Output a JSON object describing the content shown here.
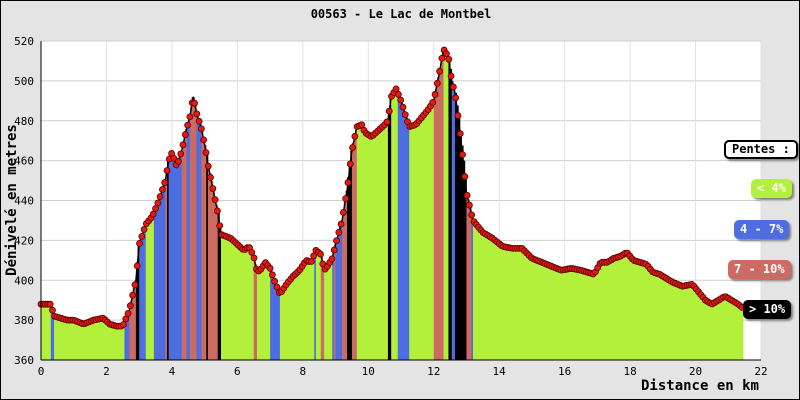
{
  "chart_data": {
    "type": "area",
    "title": "00563 - Le Lac de Montbel",
    "xlabel": "Distance en km",
    "ylabel": "Dénivelé en metres",
    "xlim": [
      0,
      22
    ],
    "ylim": [
      360,
      520
    ],
    "x_ticks": [
      "0",
      "2",
      "4",
      "6",
      "8",
      "10",
      "12",
      "14",
      "16",
      "18",
      "20",
      "22"
    ],
    "y_ticks": [
      "360",
      "380",
      "400",
      "420",
      "440",
      "460",
      "480",
      "500",
      "520"
    ],
    "grid": true,
    "legend_position": "right",
    "legend": {
      "title": "Pentes :",
      "items": [
        {
          "label": "< 4%",
          "color": "#b3f03b"
        },
        {
          "label": "4 - 7%",
          "color": "#4d6ee0"
        },
        {
          "label": "7 - 10%",
          "color": "#cd6a62"
        },
        {
          "label": "> 10%",
          "color": "#000000"
        }
      ]
    },
    "profile": [
      [
        0,
        388
      ],
      [
        0.3,
        388
      ],
      [
        0.4,
        382
      ],
      [
        0.6,
        381
      ],
      [
        0.8,
        380
      ],
      [
        1.0,
        380
      ],
      [
        1.3,
        378
      ],
      [
        1.6,
        380
      ],
      [
        1.9,
        381
      ],
      [
        2.1,
        378
      ],
      [
        2.3,
        377
      ],
      [
        2.5,
        377
      ],
      [
        2.7,
        385
      ],
      [
        2.9,
        400
      ],
      [
        3.0,
        418
      ],
      [
        3.2,
        428
      ],
      [
        3.4,
        432
      ],
      [
        3.6,
        440
      ],
      [
        3.8,
        450
      ],
      [
        3.9,
        460
      ],
      [
        4.0,
        464
      ],
      [
        4.15,
        457
      ],
      [
        4.3,
        465
      ],
      [
        4.45,
        476
      ],
      [
        4.55,
        482
      ],
      [
        4.65,
        492
      ],
      [
        4.75,
        484
      ],
      [
        4.9,
        476
      ],
      [
        5.0,
        468
      ],
      [
        5.1,
        458
      ],
      [
        5.25,
        446
      ],
      [
        5.4,
        434
      ],
      [
        5.5,
        423
      ],
      [
        5.8,
        421
      ],
      [
        6.0,
        418
      ],
      [
        6.2,
        415
      ],
      [
        6.35,
        417
      ],
      [
        6.5,
        412
      ],
      [
        6.6,
        404
      ],
      [
        6.75,
        406
      ],
      [
        6.85,
        409
      ],
      [
        7.0,
        406
      ],
      [
        7.15,
        399
      ],
      [
        7.3,
        393
      ],
      [
        7.5,
        398
      ],
      [
        7.7,
        402
      ],
      [
        7.9,
        405
      ],
      [
        8.1,
        410
      ],
      [
        8.25,
        409
      ],
      [
        8.4,
        415
      ],
      [
        8.55,
        413
      ],
      [
        8.65,
        405
      ],
      [
        8.75,
        407
      ],
      [
        8.9,
        411
      ],
      [
        9.0,
        418
      ],
      [
        9.2,
        430
      ],
      [
        9.35,
        445
      ],
      [
        9.5,
        465
      ],
      [
        9.65,
        477
      ],
      [
        9.8,
        478
      ],
      [
        9.9,
        474
      ],
      [
        10.1,
        472
      ],
      [
        10.3,
        475
      ],
      [
        10.5,
        478
      ],
      [
        10.6,
        480
      ],
      [
        10.7,
        492
      ],
      [
        10.85,
        496
      ],
      [
        11.0,
        490
      ],
      [
        11.15,
        482
      ],
      [
        11.25,
        477
      ],
      [
        11.45,
        478
      ],
      [
        11.65,
        482
      ],
      [
        11.85,
        486
      ],
      [
        12.0,
        490
      ],
      [
        12.15,
        502
      ],
      [
        12.3,
        516
      ],
      [
        12.45,
        512
      ],
      [
        12.55,
        500
      ],
      [
        12.65,
        494
      ],
      [
        12.8,
        475
      ],
      [
        12.9,
        460
      ],
      [
        13.0,
        444
      ],
      [
        13.2,
        430
      ],
      [
        13.5,
        424
      ],
      [
        13.8,
        421
      ],
      [
        14.1,
        417
      ],
      [
        14.4,
        416
      ],
      [
        14.7,
        416
      ],
      [
        15.0,
        411
      ],
      [
        15.3,
        409
      ],
      [
        15.6,
        407
      ],
      [
        15.9,
        405
      ],
      [
        16.2,
        406
      ],
      [
        16.5,
        405
      ],
      [
        16.7,
        404
      ],
      [
        16.9,
        403
      ],
      [
        17.1,
        409
      ],
      [
        17.3,
        409
      ],
      [
        17.5,
        411
      ],
      [
        17.7,
        412
      ],
      [
        17.9,
        414
      ],
      [
        18.1,
        410
      ],
      [
        18.3,
        409
      ],
      [
        18.5,
        408
      ],
      [
        18.7,
        404
      ],
      [
        18.9,
        403
      ],
      [
        19.1,
        401
      ],
      [
        19.3,
        399
      ],
      [
        19.6,
        397
      ],
      [
        19.9,
        398
      ],
      [
        20.1,
        394
      ],
      [
        20.3,
        390
      ],
      [
        20.5,
        388
      ],
      [
        20.7,
        390
      ],
      [
        20.9,
        392
      ],
      [
        21.1,
        390
      ],
      [
        21.3,
        388
      ],
      [
        21.45,
        386
      ]
    ]
  }
}
